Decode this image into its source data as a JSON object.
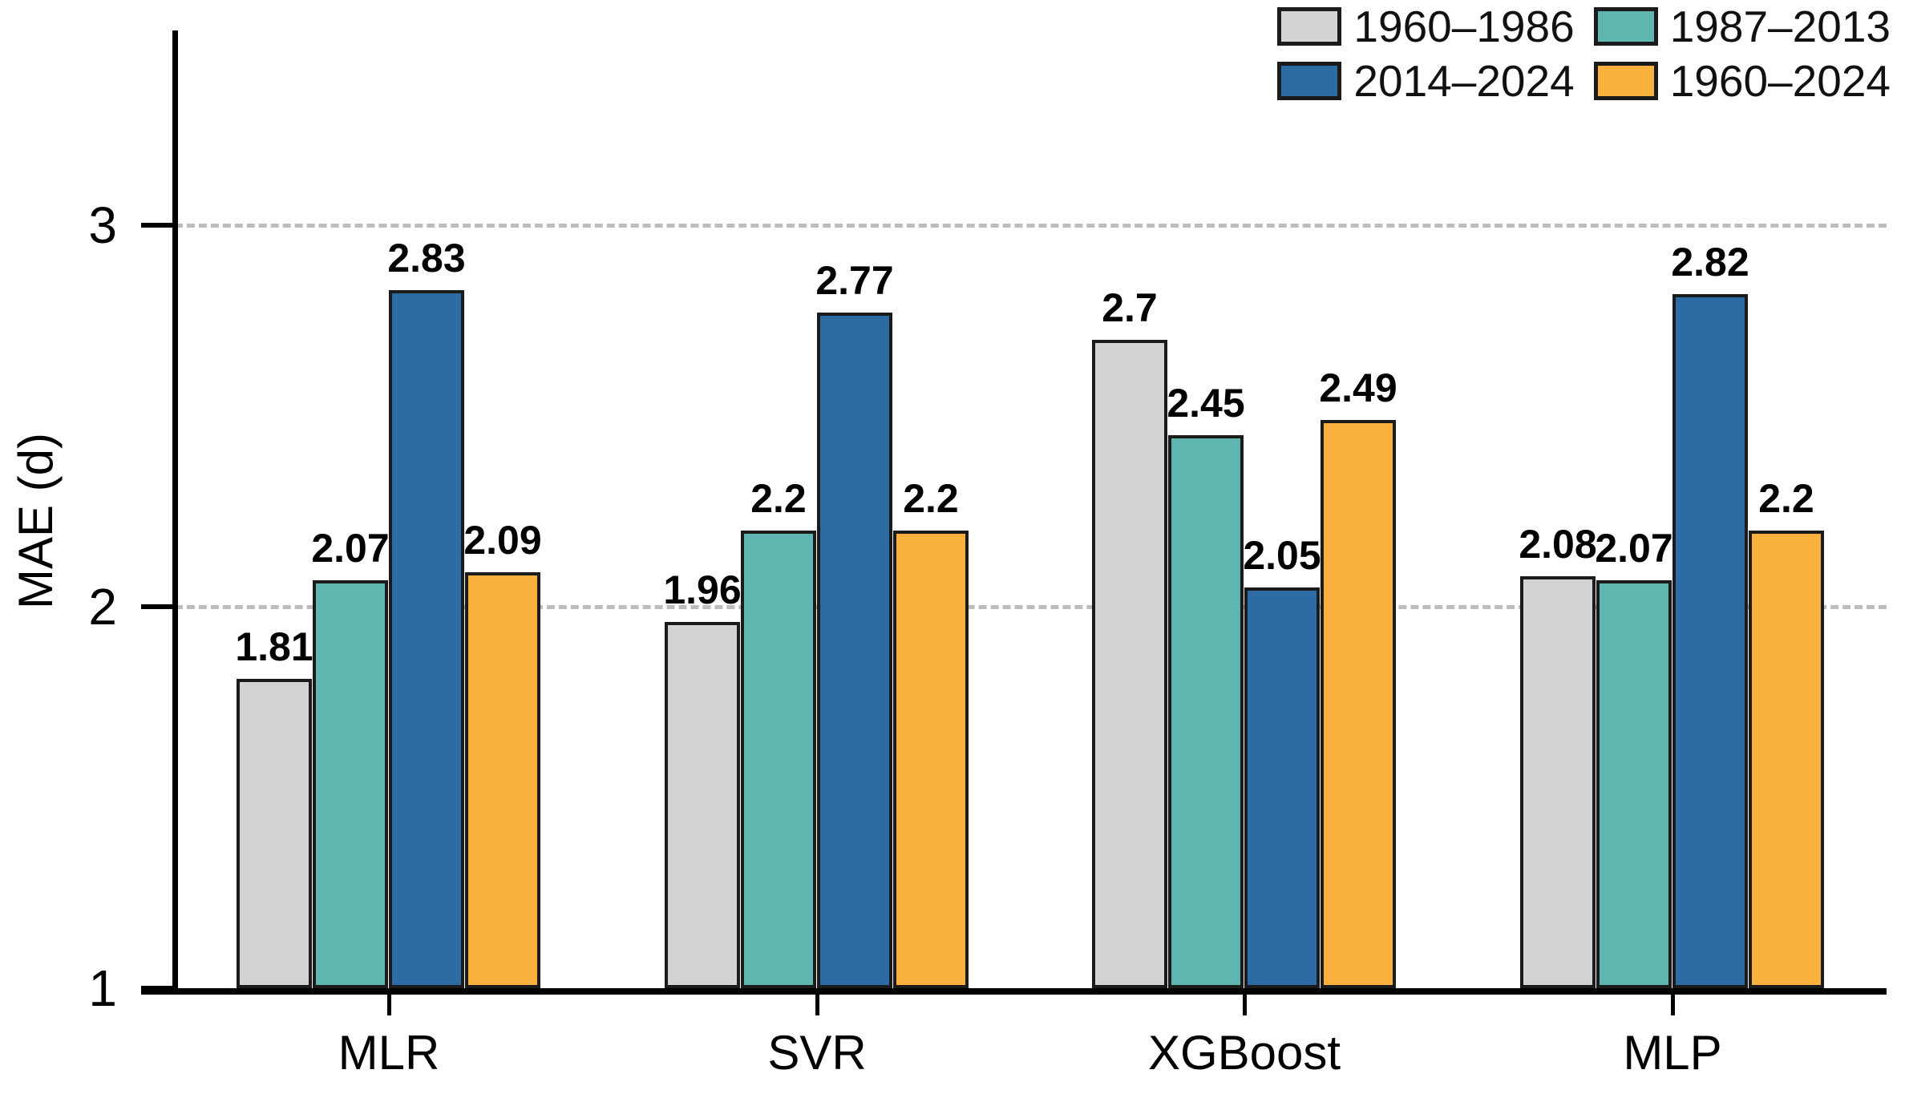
{
  "chart_data": {
    "type": "bar",
    "title": "",
    "ylabel": "MAE (d)",
    "xlabel": "",
    "ylim": [
      1,
      3.5
    ],
    "yticks": [
      1,
      2,
      3
    ],
    "ytick_labels": [
      "1",
      "2",
      "3"
    ],
    "gridline_values": [
      2,
      3
    ],
    "grid_style": "dashed horizontal gridlines at y=2 and y=3",
    "legend_position": "top-right, 2 columns x 2 rows",
    "categories": [
      "MLR",
      "SVR",
      "XGBoost",
      "MLP"
    ],
    "series": [
      {
        "name": "1960–1986",
        "color": "#d3d3d3",
        "values": [
          1.81,
          1.96,
          2.7,
          2.08
        ],
        "labels": [
          "1.81",
          "1.96",
          "2.7",
          "2.08"
        ]
      },
      {
        "name": "1987–2013",
        "color": "#5fb6b1",
        "values": [
          2.07,
          2.2,
          2.45,
          2.07
        ],
        "labels": [
          "2.07",
          "2.2",
          "2.45",
          "2.07"
        ]
      },
      {
        "name": "2014–2024",
        "color": "#2e6ba5",
        "values": [
          2.83,
          2.77,
          2.05,
          2.82
        ],
        "labels": [
          "2.83",
          "2.77",
          "2.05",
          "2.82"
        ]
      },
      {
        "name": "1960–2024",
        "color": "#f9b03c",
        "values": [
          2.09,
          2.2,
          2.49,
          2.2
        ],
        "labels": [
          "2.09",
          "2.2",
          "2.49",
          "2.2"
        ]
      }
    ],
    "bar_edge_color": "#1b1b1b",
    "value_labels_shown": true,
    "value_labels_bold": true
  },
  "colors": {
    "background": "#ffffff",
    "axis": "#000000",
    "gridline": "#bdbdbd",
    "text": "#000000"
  }
}
